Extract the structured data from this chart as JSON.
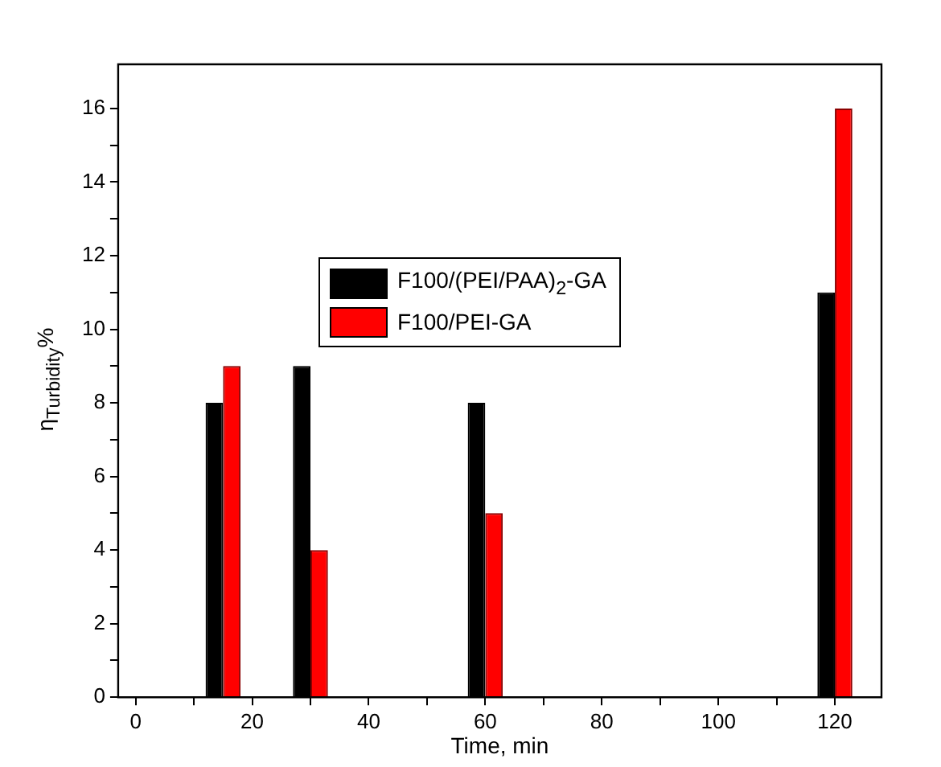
{
  "chart_data": {
    "type": "bar",
    "xlabel": "Time, min",
    "ylabel": "η$_{Turbidity}$%",
    "x": [
      15,
      30,
      60,
      120
    ],
    "series": [
      {
        "name": "F100/(PEI/PAA)$_{2}$-GA",
        "color": "#000000",
        "values": [
          8,
          9,
          8,
          11
        ]
      },
      {
        "name": "F100/PEI-GA",
        "color": "#ff0000",
        "values": [
          9,
          4,
          5,
          16
        ]
      }
    ],
    "xlim": [
      -3,
      128
    ],
    "xticks": [
      0,
      {
        "value": 10,
        "label": null
      },
      20,
      {
        "value": 30,
        "label": null
      },
      40,
      {
        "value": 50,
        "label": null
      },
      60,
      {
        "value": 70,
        "label": null
      },
      80,
      {
        "value": 90,
        "label": null
      },
      100,
      {
        "value": 110,
        "label": null
      },
      120
    ],
    "ylim": [
      0,
      17.2
    ],
    "yticks": [
      0,
      {
        "value": 1,
        "label": null
      },
      2,
      {
        "value": 3,
        "label": null
      },
      4,
      {
        "value": 5,
        "label": null
      },
      6,
      {
        "value": 7,
        "label": null
      },
      8,
      {
        "value": 9,
        "label": null
      },
      10,
      {
        "value": 11,
        "label": null
      },
      12,
      {
        "value": 13,
        "label": null
      },
      14,
      {
        "value": 15,
        "label": null
      },
      16
    ],
    "legend": "top",
    "grid": false
  }
}
